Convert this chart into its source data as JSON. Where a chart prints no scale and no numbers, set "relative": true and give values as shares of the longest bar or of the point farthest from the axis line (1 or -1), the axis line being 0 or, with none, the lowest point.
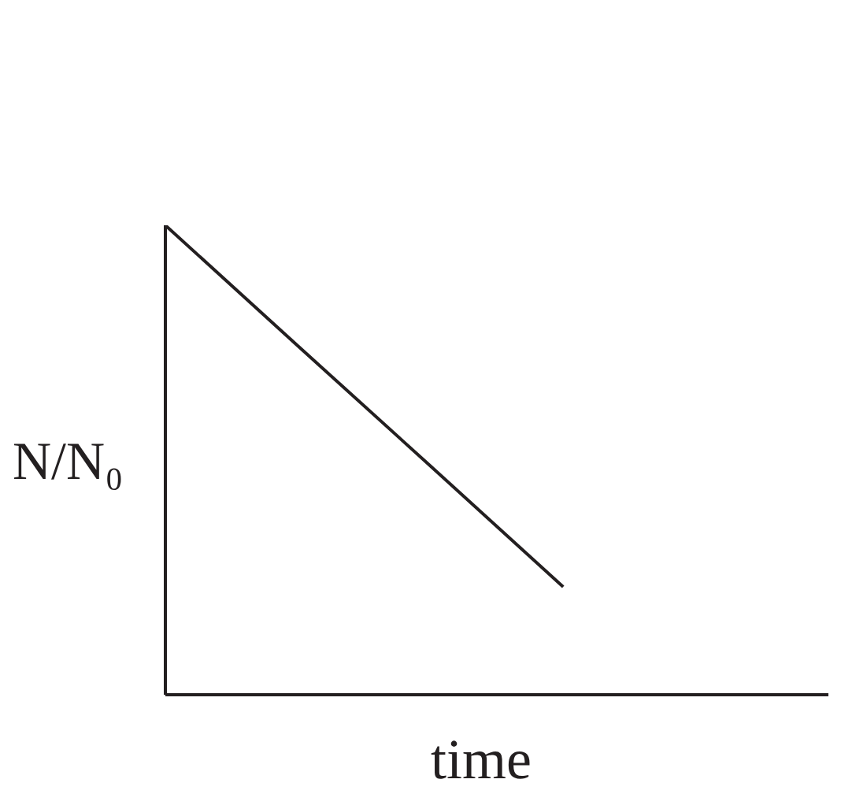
{
  "chart_data": {
    "type": "line",
    "relative": true,
    "xlabel": "time",
    "ylabel": "N/N₀",
    "categories": [
      null,
      null,
      null,
      null,
      null,
      null
    ],
    "series": [
      {
        "color": "#231f20",
        "values": [
          1,
          0.743,
          0.487,
          0.23,
          null,
          null
        ]
      }
    ],
    "marker": "none"
  }
}
